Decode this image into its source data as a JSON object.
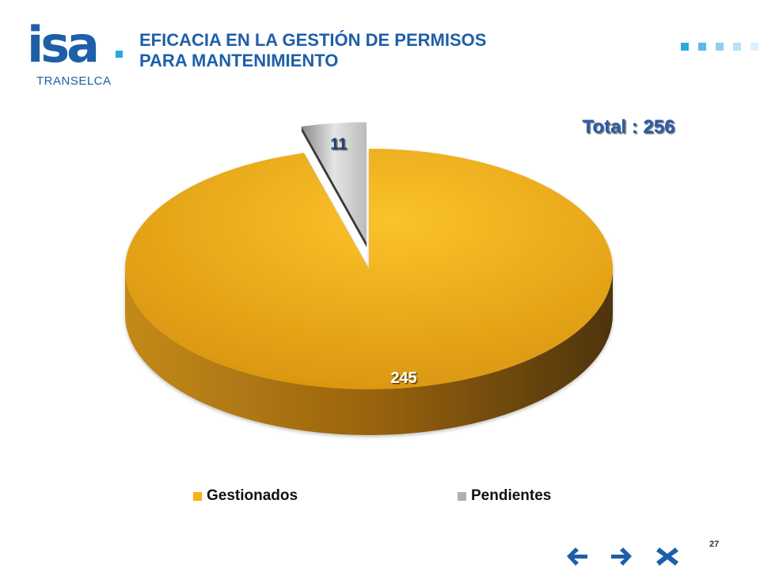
{
  "logo": {
    "word": "isa",
    "subtitle": "TRANSELCA",
    "color": "#1f5fa8",
    "dot_color": "#2aa9e0"
  },
  "title": {
    "line1": "EFICACIA EN LA GESTIÓN DE PERMISOS",
    "line2": "PARA MANTENIMIENTO",
    "color": "#1f5fa8"
  },
  "decor_squares": [
    "#2aa9e0",
    "#5bbbe6",
    "#8ccfee",
    "#b9e2f5",
    "#dcf0fa"
  ],
  "chart_data": {
    "type": "pie",
    "style": "3d-exploded",
    "total_label": "Total : 256",
    "legend_position": "bottom",
    "slices": [
      {
        "name": "Gestionados",
        "value": 245,
        "label": "245",
        "color": "#f5b21b",
        "side_color": "#8a5a0c"
      },
      {
        "name": "Pendientes",
        "value": 11,
        "label": "11",
        "color": "#c8c8c8",
        "side_color": "#6e6e6e"
      }
    ]
  },
  "legend": {
    "items": [
      {
        "label": "Gestionados",
        "color": "#f5b21b"
      },
      {
        "label": "Pendientes",
        "color": "#b0b0b0"
      }
    ]
  },
  "page_number": "27",
  "nav": {
    "color": "#1f5fa8",
    "prev": "arrow-left-icon",
    "next": "arrow-right-icon",
    "close": "close-icon"
  }
}
